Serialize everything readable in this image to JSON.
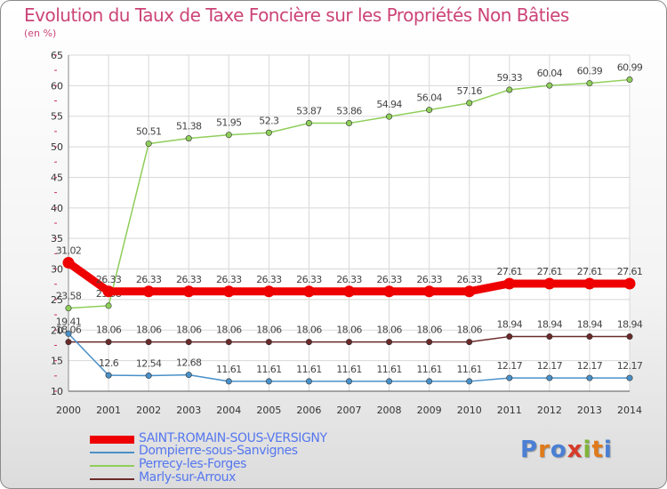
{
  "title": "Evolution du Taux de Taxe Foncière sur les Propriétés Non Bâties",
  "unit_label": "(en %)",
  "logo_text": "Proxiti",
  "chart_data": {
    "type": "line",
    "x": [
      "2000",
      "2001",
      "2002",
      "2003",
      "2004",
      "2005",
      "2006",
      "2007",
      "2008",
      "2009",
      "2010",
      "2011",
      "2012",
      "2013",
      "2014"
    ],
    "ylim": [
      10,
      65
    ],
    "yticks": [
      10,
      15,
      20,
      25,
      30,
      35,
      40,
      45,
      50,
      55,
      60,
      65
    ],
    "grid": true,
    "legend_position": "bottom-left",
    "series": [
      {
        "name": "Marly-sur-Arroux",
        "color": "#6b2a2a",
        "values": [
          18.06,
          18.06,
          18.06,
          18.06,
          18.06,
          18.06,
          18.06,
          18.06,
          18.06,
          18.06,
          18.06,
          18.94,
          18.94,
          18.94,
          18.94
        ],
        "labels": [
          "18.06",
          "18.06",
          "18.06",
          "18.06",
          "18.06",
          "18.06",
          "18.06",
          "18.06",
          "18.06",
          "18.06",
          "18.06",
          "18.94",
          "18.94",
          "18.94",
          "18.94"
        ]
      },
      {
        "name": "Dompierre-sous-Sanvignes",
        "color": "#4a90c8",
        "values": [
          19.41,
          12.6,
          12.54,
          12.68,
          11.61,
          11.61,
          11.61,
          11.61,
          11.61,
          11.61,
          11.61,
          12.17,
          12.17,
          12.17,
          12.17
        ],
        "labels": [
          "19.41",
          "12.6",
          "12.54",
          "12.68",
          "11.61",
          "11.61",
          "11.61",
          "11.61",
          "11.61",
          "11.61",
          "11.61",
          "12.17",
          "12.17",
          "12.17",
          "12.17"
        ]
      },
      {
        "name": "Perrecy-les-Forges",
        "color": "#8fce5a",
        "values": [
          23.58,
          23.98,
          50.51,
          51.38,
          51.95,
          52.3,
          53.87,
          53.86,
          54.94,
          56.04,
          57.16,
          59.33,
          60.04,
          60.39,
          60.99
        ],
        "labels": [
          "23.58",
          "23.98",
          "50.51",
          "51.38",
          "51.95",
          "52.3",
          "53.87",
          "53.86",
          "54.94",
          "56.04",
          "57.16",
          "59.33",
          "60.04",
          "60.39",
          "60.99"
        ]
      },
      {
        "name": "SAINT-ROMAIN-SOUS-VERSIGNY",
        "color": "#ee0000",
        "values": [
          31.02,
          26.33,
          26.33,
          26.33,
          26.33,
          26.33,
          26.33,
          26.33,
          26.33,
          26.33,
          26.33,
          27.61,
          27.61,
          27.61,
          27.61
        ],
        "labels": [
          "31.02",
          "26.33",
          "26.33",
          "26.33",
          "26.33",
          "26.33",
          "26.33",
          "26.33",
          "26.33",
          "26.33",
          "26.33",
          "27.61",
          "27.61",
          "27.61",
          "27.61"
        ]
      }
    ]
  },
  "legend": [
    {
      "name": "SAINT-ROMAIN-SOUS-VERSIGNY",
      "color": "#ee0000",
      "text_color": "#5577ee",
      "thick": true
    },
    {
      "name": "Dompierre-sous-Sanvignes",
      "color": "#4a90c8",
      "text_color": "#5577ee",
      "thick": false
    },
    {
      "name": "Perrecy-les-Forges",
      "color": "#8fce5a",
      "text_color": "#5577ee",
      "thick": false
    },
    {
      "name": "Marly-sur-Arroux",
      "color": "#6b2a2a",
      "text_color": "#5577ee",
      "thick": false
    }
  ],
  "logo_colors": [
    "#4a7fd4",
    "#e07a1a",
    "#4a7fd4",
    "#d83a2a",
    "#7fb43a",
    "#e07a1a",
    "#4a7fd4"
  ]
}
